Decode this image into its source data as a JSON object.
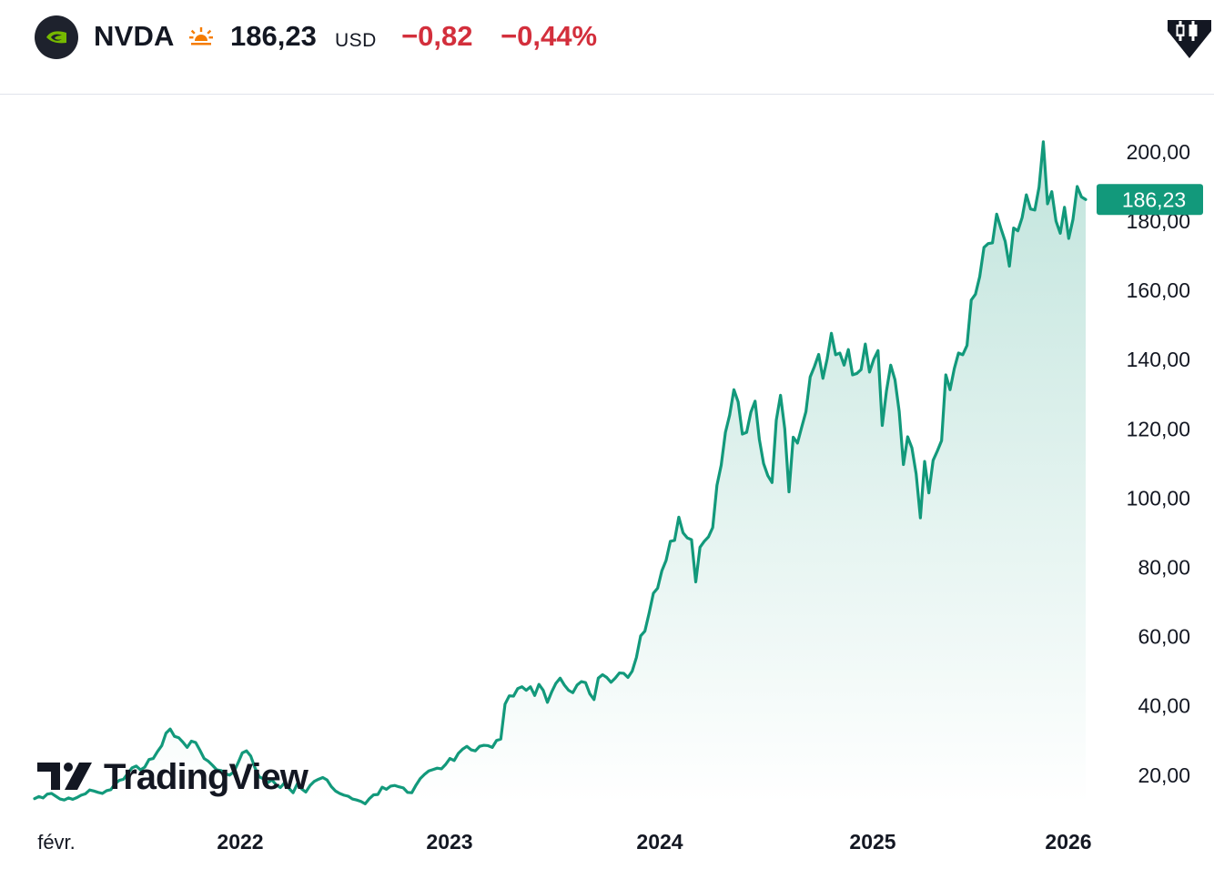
{
  "header": {
    "symbol": "NVDA",
    "price": "186,23",
    "currency": "USD",
    "change": "−0,82",
    "change_percent": "−0,44%",
    "session_icon": "sun-icon",
    "logo_icon": "nvidia-logo-icon",
    "badge_icon": "candlestick-icon"
  },
  "colors": {
    "line": "#12997b",
    "negative": "#d32f3c",
    "label_bg": "#12997b",
    "session": "#f57c00"
  },
  "watermark": "TradingView",
  "chart_data": {
    "type": "area",
    "title": "",
    "xlabel": "",
    "ylabel": "",
    "y_ticks": [
      "20,00",
      "40,00",
      "60,00",
      "80,00",
      "100,00",
      "120,00",
      "140,00",
      "160,00",
      "180,00",
      "200,00"
    ],
    "x_ticks": [
      "févr.",
      "2022",
      "2023",
      "2024",
      "2025",
      "2026"
    ],
    "ylim": [
      10,
      212
    ],
    "grid": false,
    "last_value_label": "186,23",
    "series": [
      {
        "values": [
          13.2,
          13.8,
          13.4,
          14.5,
          14.7,
          13.9,
          13.1,
          12.8,
          13.4,
          13.0,
          13.5,
          14.2,
          14.6,
          15.7,
          15.4,
          15.0,
          14.7,
          15.5,
          15.8,
          17.5,
          18.5,
          18.8,
          20.5,
          22.1,
          22.6,
          21.5,
          22.3,
          24.5,
          24.8,
          26.8,
          28.5,
          32.1,
          33.3,
          31.2,
          30.8,
          29.5,
          28.0,
          29.8,
          29.4,
          27.2,
          24.8,
          24.0,
          22.8,
          21.5,
          21.3,
          20.4,
          20.0,
          20.9,
          23.5,
          26.4,
          27.0,
          25.5,
          22.1,
          19.5,
          18.9,
          17.8,
          18.6,
          17.2,
          16.4,
          17.8,
          16.2,
          14.9,
          17.5,
          16.0,
          15.1,
          17.0,
          18.2,
          18.8,
          19.3,
          18.6,
          16.7,
          15.4,
          14.7,
          14.2,
          13.9,
          13.1,
          12.8,
          12.4,
          11.7,
          13.2,
          14.3,
          14.4,
          16.5,
          15.9,
          16.8,
          17.0,
          16.6,
          16.3,
          15.0,
          14.9,
          17.1,
          19.0,
          20.2,
          21.2,
          21.6,
          22.0,
          21.8,
          23.1,
          24.8,
          24.2,
          26.3,
          27.5,
          28.3,
          27.3,
          27.0,
          28.3,
          28.6,
          28.5,
          28.0,
          30.0,
          30.4,
          40.5,
          42.9,
          42.8,
          45.0,
          45.5,
          44.5,
          45.5,
          43.0,
          46.2,
          44.5,
          41.0,
          44.0,
          46.5,
          48.0,
          46.0,
          44.5,
          43.8,
          46.0,
          47.0,
          46.7,
          43.5,
          41.8,
          48.0,
          49.0,
          48.2,
          46.8,
          48.0,
          49.5,
          49.4,
          48.2,
          50.0,
          54.0,
          60.2,
          61.6,
          66.8,
          72.5,
          74.0,
          79.0,
          82.0,
          87.5,
          87.8,
          94.5,
          90.0,
          88.5,
          88.0,
          75.8,
          85.8,
          87.5,
          88.8,
          91.5,
          103.7,
          109.5,
          119.0,
          124.0,
          131.3,
          127.8,
          118.5,
          119.0,
          124.8,
          128.0,
          117.0,
          110.0,
          106.5,
          104.5,
          122.5,
          129.7,
          120.0,
          101.8,
          117.6,
          115.9,
          120.5,
          125.0,
          135.0,
          138.0,
          141.5,
          134.6,
          140.2,
          147.6,
          141.4,
          141.9,
          138.4,
          142.9,
          135.6,
          136.0,
          137.1,
          144.5,
          136.4,
          140.1,
          142.6,
          121.0,
          131.0,
          138.4,
          134.2,
          125.0,
          109.7,
          117.7,
          114.5,
          107.0,
          94.3,
          110.6,
          101.5,
          110.9,
          113.6,
          116.6,
          135.6,
          131.3,
          137.4,
          141.9,
          141.4,
          144.1,
          157.2,
          158.9,
          164.0,
          172.4,
          173.5,
          173.7,
          182.0,
          177.9,
          174.2,
          167.0,
          178.0,
          177.2,
          181.0,
          187.6,
          183.5,
          183.2,
          189.8,
          202.9,
          185.0,
          188.5,
          180.0,
          176.5,
          184.0,
          175.0,
          180.5,
          190.0,
          187.0,
          186.23
        ]
      }
    ]
  }
}
